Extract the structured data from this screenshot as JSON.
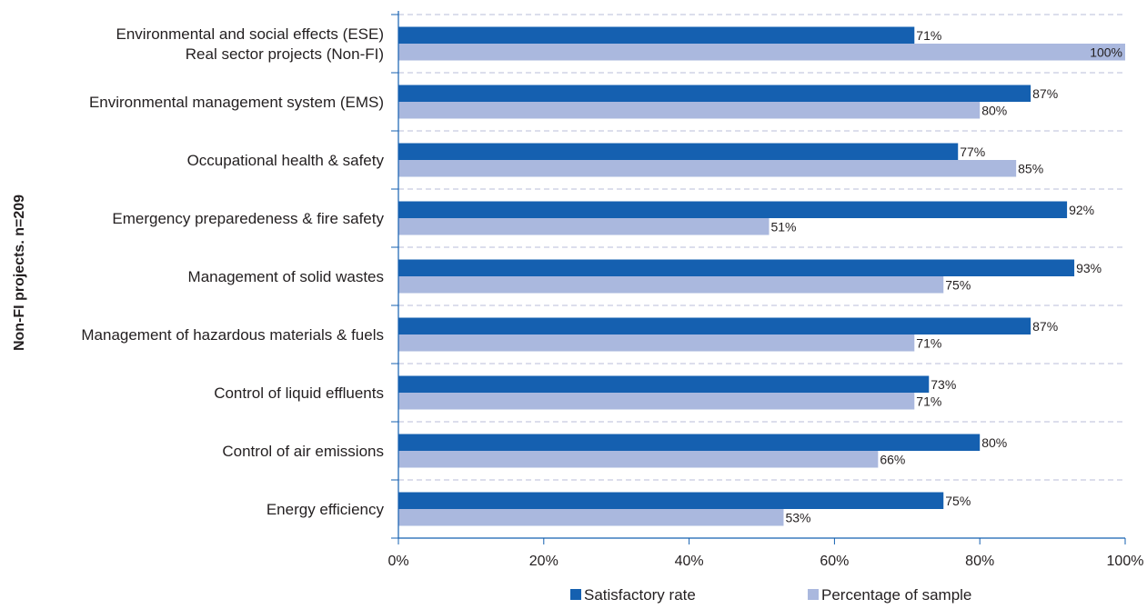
{
  "chart_data": {
    "type": "bar",
    "orientation": "horizontal",
    "ylabel": "Non-FI projects.  n=209",
    "xlabel": "",
    "categories": [
      [
        "Environmental and social effects (ESE)",
        "Real sector projects (Non-FI)"
      ],
      [
        "Environmental management system (EMS)"
      ],
      [
        "Occupational health & safety"
      ],
      [
        "Emergency preparedeness & fire safety"
      ],
      [
        "Management of solid wastes"
      ],
      [
        "Management of hazardous materials & fuels"
      ],
      [
        "Control of liquid effluents"
      ],
      [
        "Control of air emissions"
      ],
      [
        "Energy efficiency"
      ]
    ],
    "series": [
      {
        "name": "Satisfactory rate",
        "color": "#1560b0",
        "values": [
          71,
          87,
          77,
          92,
          93,
          87,
          73,
          80,
          75
        ],
        "labels": [
          "71%",
          "87%",
          "77%",
          "92%",
          "93%",
          "87%",
          "73%",
          "80%",
          "75%"
        ]
      },
      {
        "name": "Percentage of sample",
        "color": "#aab8de",
        "values": [
          100,
          80,
          85,
          51,
          75,
          71,
          71,
          66,
          53
        ],
        "labels": [
          "100%",
          "80%",
          "85%",
          "51%",
          "75%",
          "71%",
          "71%",
          "66%",
          "53%"
        ]
      }
    ],
    "xlim": [
      0,
      100
    ],
    "x_ticks": [
      "0%",
      "20%",
      "40%",
      "60%",
      "80%",
      "100%"
    ],
    "grid": "dashed horizontal separators",
    "legend_position": "bottom-right",
    "axis_color": "#1560b0",
    "grid_color": "#b9bcd9"
  }
}
